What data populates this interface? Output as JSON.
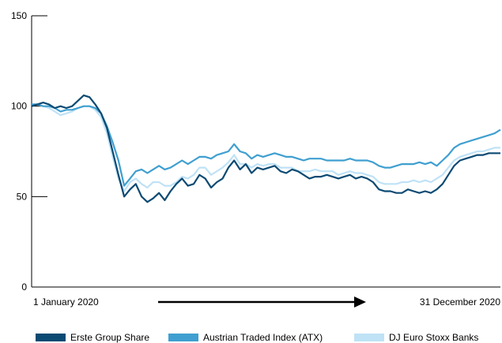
{
  "chart_data": {
    "type": "line",
    "ylim": [
      0,
      150
    ],
    "yticks": [
      0,
      50,
      100,
      150
    ],
    "x_start_label": "1 January 2020",
    "x_end_label": "31 December 2020",
    "grid": false,
    "legend_position": "bottom",
    "series": [
      {
        "name": "Erste Group Share",
        "color": "#0b4a73",
        "values": [
          100,
          101,
          102,
          101,
          99,
          100,
          99,
          100,
          103,
          106,
          105,
          101,
          96,
          88,
          75,
          62,
          50,
          54,
          57,
          50,
          47,
          49,
          52,
          48,
          53,
          57,
          60,
          56,
          57,
          62,
          60,
          55,
          58,
          60,
          66,
          70,
          65,
          68,
          63,
          66,
          65,
          66,
          67,
          64,
          63,
          65,
          64,
          62,
          60,
          61,
          61,
          62,
          61,
          60,
          61,
          62,
          60,
          61,
          60,
          58,
          54,
          53,
          53,
          52,
          52,
          54,
          53,
          52,
          53,
          52,
          54,
          57,
          62,
          67,
          70,
          71,
          72,
          73,
          73,
          74,
          74,
          74
        ]
      },
      {
        "name": "Austrian Traded Index (ATX)",
        "color": "#3f9fd0",
        "values": [
          101,
          101,
          100,
          100,
          99,
          97,
          98,
          98,
          99,
          100,
          100,
          99,
          96,
          89,
          80,
          70,
          56,
          60,
          64,
          65,
          63,
          65,
          67,
          65,
          66,
          68,
          70,
          68,
          70,
          72,
          72,
          71,
          73,
          74,
          75,
          79,
          75,
          74,
          71,
          73,
          72,
          73,
          74,
          73,
          72,
          72,
          71,
          70,
          71,
          71,
          71,
          70,
          70,
          70,
          70,
          71,
          70,
          70,
          70,
          69,
          67,
          66,
          66,
          67,
          68,
          68,
          68,
          69,
          68,
          69,
          67,
          70,
          73,
          77,
          79,
          80,
          81,
          82,
          83,
          84,
          85,
          87
        ]
      },
      {
        "name": "DJ Euro Stoxx Banks",
        "color": "#bfe2f6",
        "values": [
          101,
          101,
          100,
          99,
          97,
          95,
          96,
          97,
          99,
          100,
          100,
          98,
          94,
          85,
          72,
          60,
          53,
          58,
          60,
          57,
          55,
          58,
          58,
          56,
          56,
          58,
          61,
          60,
          62,
          66,
          66,
          62,
          64,
          66,
          69,
          73,
          68,
          68,
          66,
          68,
          67,
          68,
          68,
          66,
          66,
          66,
          64,
          64,
          64,
          65,
          64,
          64,
          64,
          62,
          63,
          64,
          63,
          63,
          62,
          61,
          58,
          57,
          57,
          57,
          58,
          58,
          59,
          58,
          59,
          58,
          60,
          62,
          66,
          70,
          72,
          73,
          74,
          75,
          75,
          76,
          77,
          77
        ]
      }
    ]
  }
}
